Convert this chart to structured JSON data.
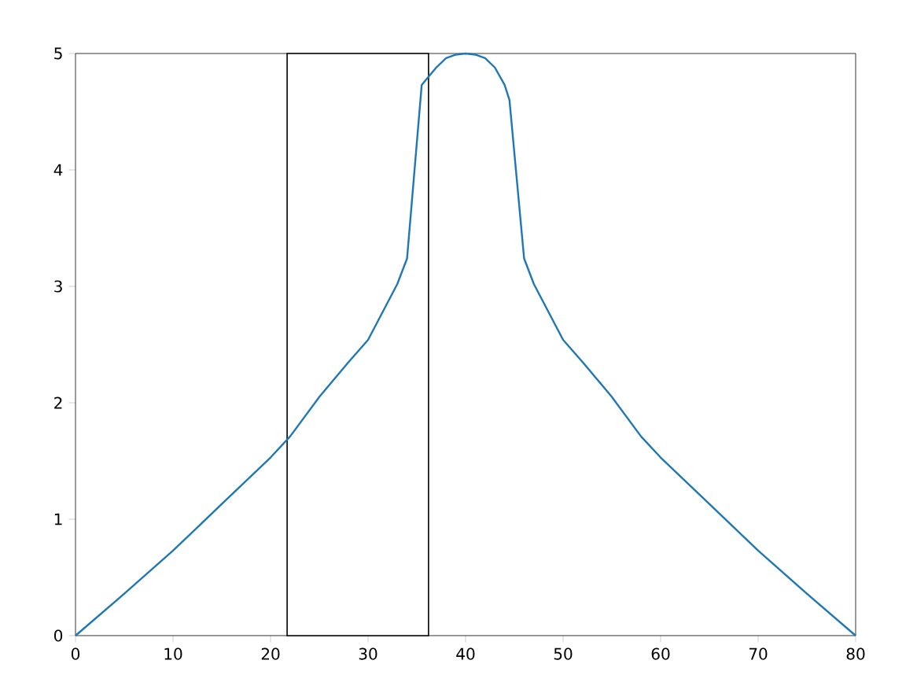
{
  "chart_data": {
    "type": "line",
    "x": [
      0,
      5,
      10,
      15,
      20,
      22,
      25,
      28,
      30,
      33,
      34,
      35.5,
      36,
      37,
      38,
      39,
      40,
      41,
      42,
      43,
      44,
      44.5,
      46,
      47,
      50,
      52,
      55,
      58,
      60,
      65,
      70,
      75,
      80
    ],
    "series": [
      {
        "color": "#1f77b4",
        "values": [
          0,
          0.36,
          0.73,
          1.13,
          1.53,
          1.71,
          2.05,
          2.35,
          2.54,
          3.02,
          3.24,
          4.73,
          4.78,
          4.88,
          4.96,
          4.99,
          5,
          4.99,
          4.96,
          4.88,
          4.73,
          4.6,
          3.24,
          3.02,
          2.54,
          2.35,
          2.05,
          1.71,
          1.53,
          1.13,
          0.73,
          0.36,
          0
        ]
      }
    ],
    "xlim": [
      0,
      80
    ],
    "ylim": [
      0,
      5
    ],
    "xticks": [
      0,
      10,
      20,
      30,
      40,
      50,
      60,
      70,
      80
    ],
    "yticks": [
      0,
      1,
      2,
      3,
      4,
      5
    ],
    "bands": [
      {
        "axis": "x",
        "from": 21.7,
        "to": 36.2,
        "color": "#000000"
      }
    ],
    "grid": false,
    "marker": "none",
    "line_style": "solid"
  }
}
